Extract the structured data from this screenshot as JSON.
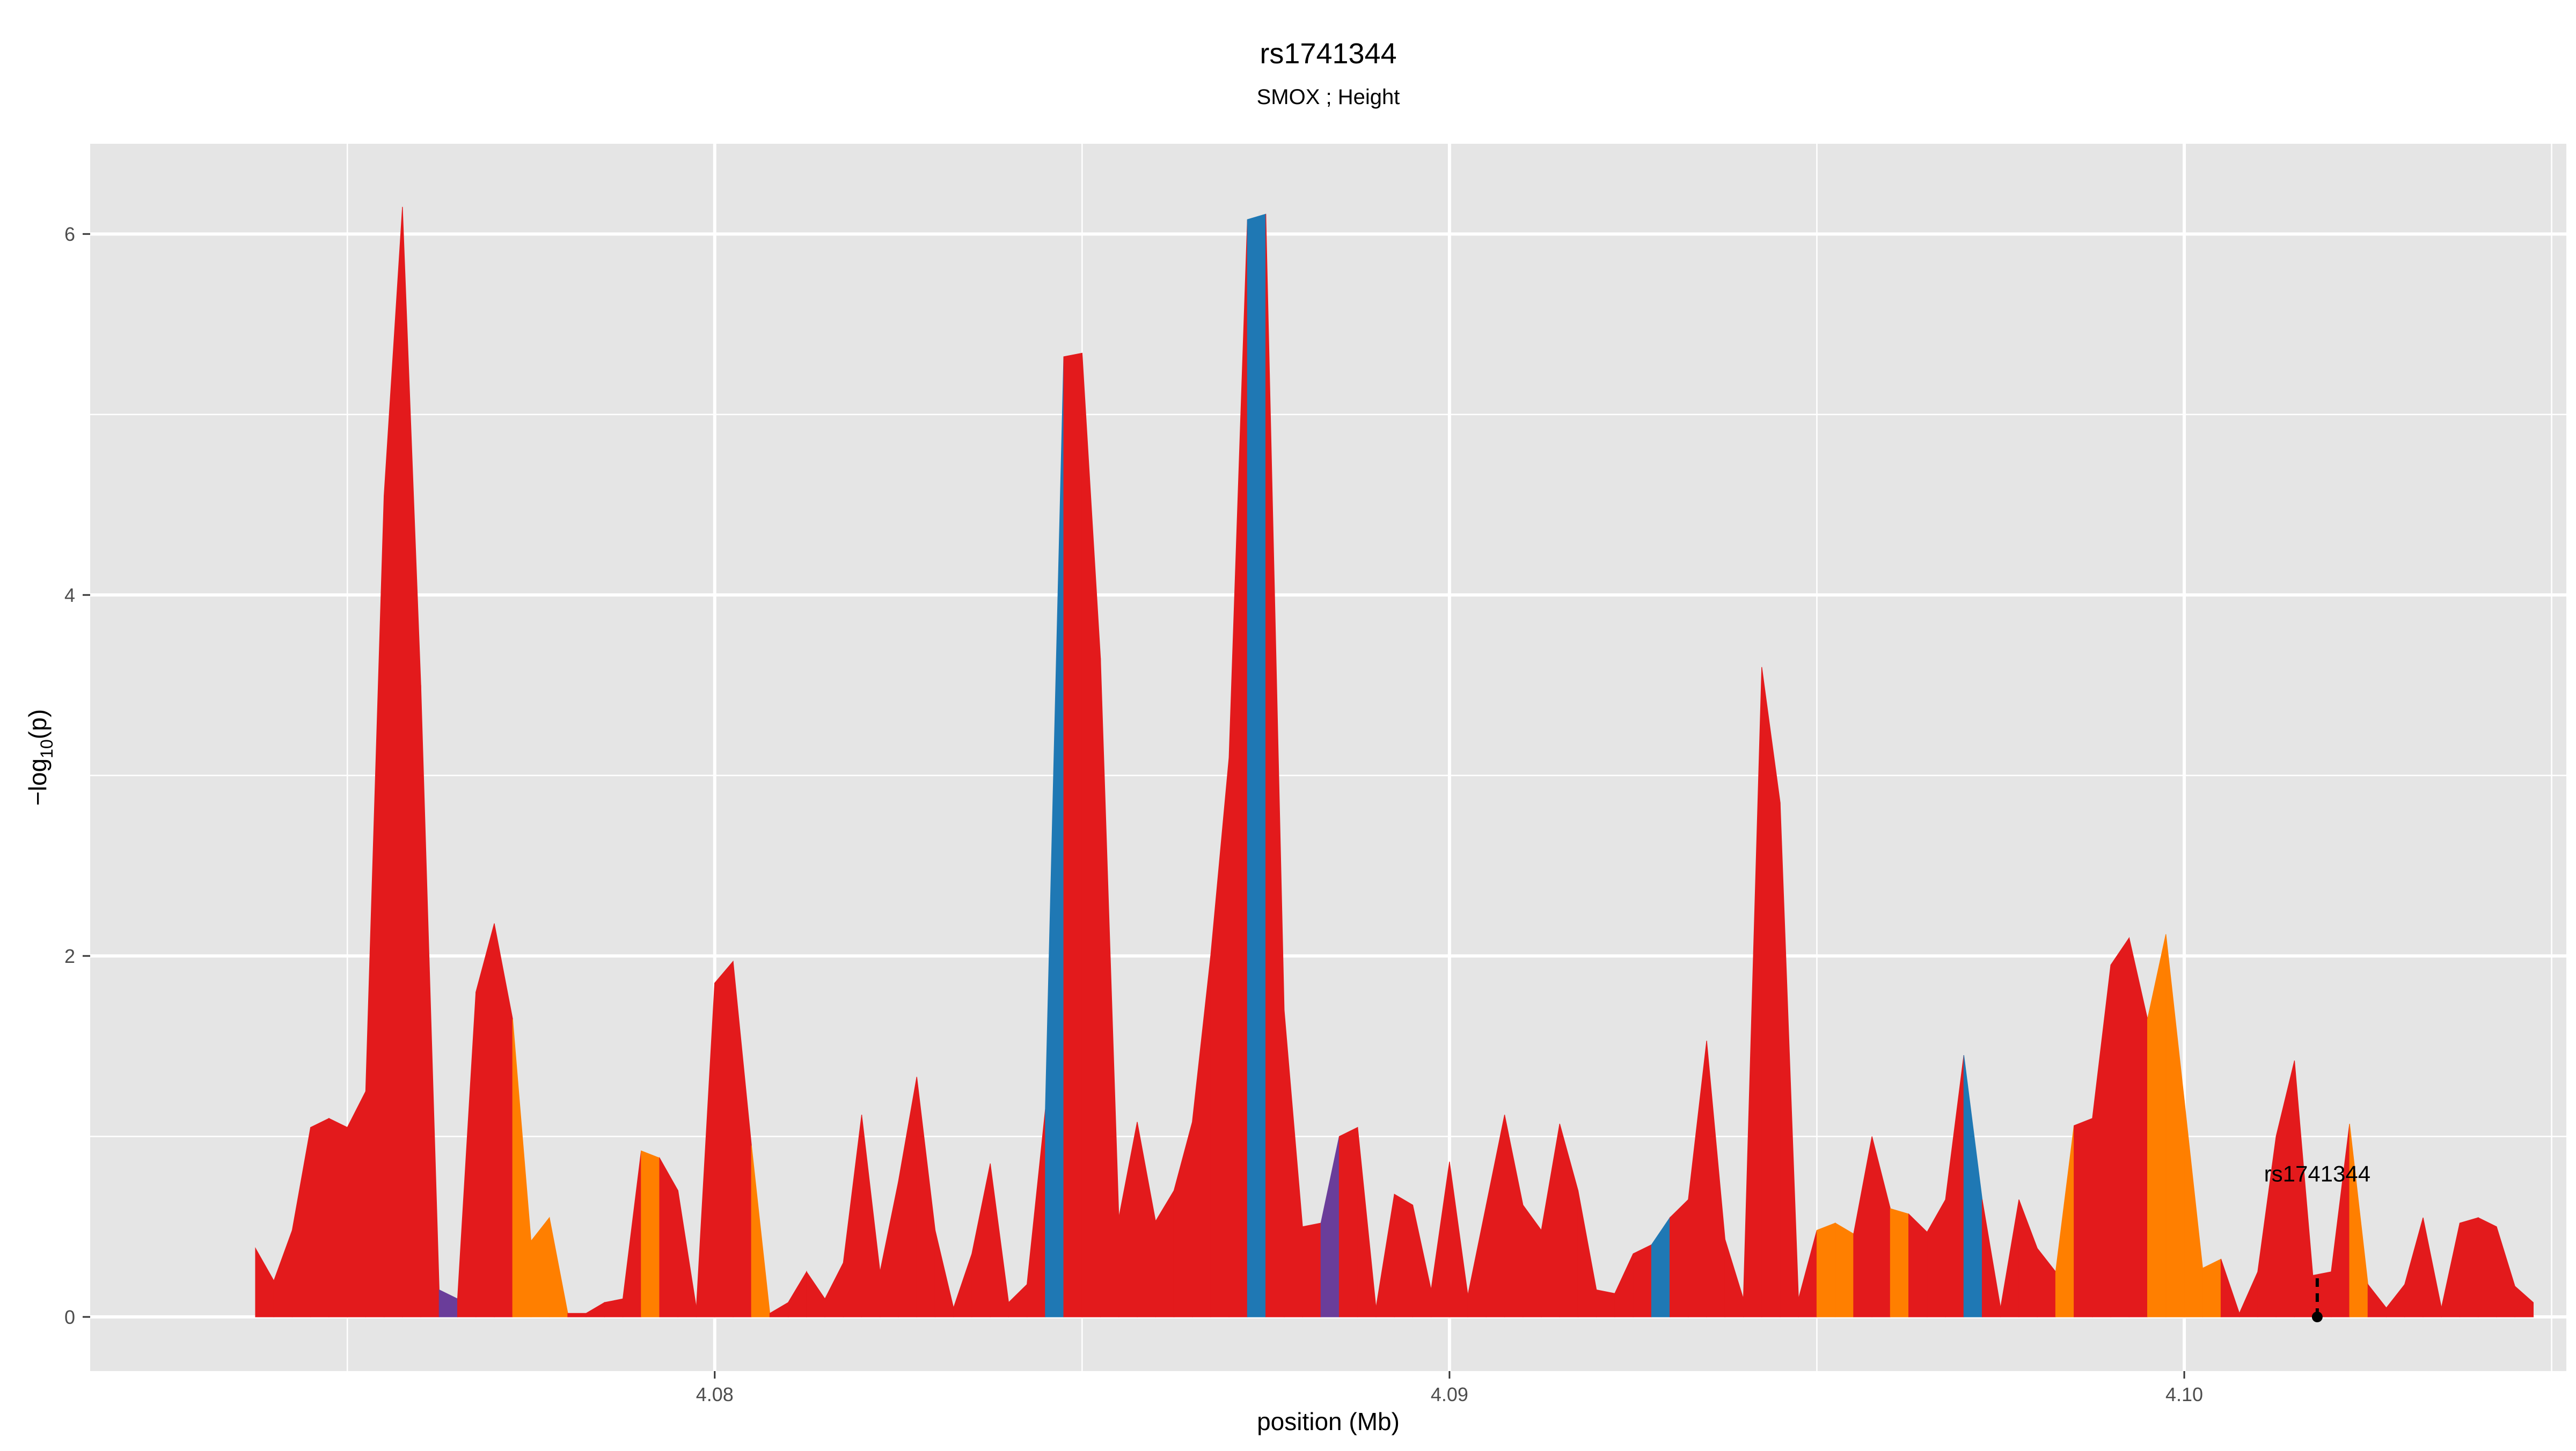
{
  "chart_data": {
    "type": "area",
    "title": "rs1741344",
    "subtitle": "SMOX ; Height",
    "xlabel": "position (Mb)",
    "ylabel_base": "−log",
    "ylabel_sub": "10",
    "ylabel_tail": "(p)",
    "xlim": [
      4.0715,
      4.1052
    ],
    "ylim": [
      -0.3,
      6.5
    ],
    "xticks": [
      {
        "value": 4.08,
        "label": "4.08"
      },
      {
        "value": 4.09,
        "label": "4.09"
      },
      {
        "value": 4.1,
        "label": "4.10"
      }
    ],
    "xminor": [
      4.075,
      4.085,
      4.095,
      4.105
    ],
    "yticks": [
      {
        "value": 0,
        "label": "0"
      },
      {
        "value": 2,
        "label": "2"
      },
      {
        "value": 4,
        "label": "4"
      },
      {
        "value": 6,
        "label": "6"
      }
    ],
    "yminor": [
      1,
      3,
      5
    ],
    "grid": true,
    "colors": {
      "panel": "#e5e5e5",
      "grid": "#ffffff",
      "red": "#e31a1c",
      "orange": "#ff7f00",
      "blue": "#1f78b4",
      "purple": "#6a3d9a",
      "title": "#000000",
      "axis_text": "#4d4d4d"
    },
    "points": [
      [
        4.07375,
        0.38,
        "red"
      ],
      [
        4.074,
        0.2,
        "red"
      ],
      [
        4.07425,
        0.48,
        "red"
      ],
      [
        4.0745,
        1.05,
        "red"
      ],
      [
        4.07475,
        1.1,
        "red"
      ],
      [
        4.075,
        1.05,
        "red"
      ],
      [
        4.07525,
        1.25,
        "red"
      ],
      [
        4.0755,
        4.55,
        "red"
      ],
      [
        4.07575,
        6.15,
        "red"
      ],
      [
        4.076,
        3.5,
        "red"
      ],
      [
        4.07625,
        0.15,
        "purple"
      ],
      [
        4.0765,
        0.1,
        "red"
      ],
      [
        4.07675,
        1.8,
        "red"
      ],
      [
        4.077,
        2.18,
        "red"
      ],
      [
        4.07725,
        1.65,
        "orange"
      ],
      [
        4.0775,
        0.42,
        "orange"
      ],
      [
        4.07775,
        0.55,
        "orange"
      ],
      [
        4.078,
        0.02,
        "red"
      ],
      [
        4.07825,
        0.02,
        "red"
      ],
      [
        4.0785,
        0.08,
        "red"
      ],
      [
        4.07875,
        0.1,
        "red"
      ],
      [
        4.079,
        0.92,
        "orange"
      ],
      [
        4.07925,
        0.88,
        "red"
      ],
      [
        4.0795,
        0.7,
        "red"
      ],
      [
        4.07975,
        0.05,
        "red"
      ],
      [
        4.08,
        1.85,
        "red"
      ],
      [
        4.08025,
        1.97,
        "red"
      ],
      [
        4.0805,
        0.95,
        "orange"
      ],
      [
        4.08075,
        0.02,
        "red"
      ],
      [
        4.081,
        0.08,
        "red"
      ],
      [
        4.08125,
        0.25,
        "red"
      ],
      [
        4.0815,
        0.1,
        "red"
      ],
      [
        4.08175,
        0.3,
        "red"
      ],
      [
        4.082,
        1.12,
        "red"
      ],
      [
        4.08225,
        0.25,
        "red"
      ],
      [
        4.0825,
        0.75,
        "red"
      ],
      [
        4.08275,
        1.33,
        "red"
      ],
      [
        4.083,
        0.48,
        "red"
      ],
      [
        4.08325,
        0.05,
        "red"
      ],
      [
        4.0835,
        0.35,
        "red"
      ],
      [
        4.08375,
        0.85,
        "red"
      ],
      [
        4.084,
        0.08,
        "red"
      ],
      [
        4.08425,
        0.18,
        "red"
      ],
      [
        4.0845,
        1.15,
        "blue"
      ],
      [
        4.08475,
        5.32,
        "red"
      ],
      [
        4.085,
        5.34,
        "red"
      ],
      [
        4.08525,
        3.65,
        "red"
      ],
      [
        4.0855,
        0.55,
        "red"
      ],
      [
        4.08575,
        1.08,
        "red"
      ],
      [
        4.086,
        0.53,
        "red"
      ],
      [
        4.08625,
        0.7,
        "red"
      ],
      [
        4.0865,
        1.08,
        "red"
      ],
      [
        4.08675,
        2.0,
        "red"
      ],
      [
        4.087,
        3.1,
        "red"
      ],
      [
        4.08725,
        6.08,
        "blue"
      ],
      [
        4.0875,
        6.11,
        "red"
      ],
      [
        4.08775,
        1.7,
        "red"
      ],
      [
        4.088,
        0.5,
        "red"
      ],
      [
        4.08825,
        0.52,
        "purple"
      ],
      [
        4.0885,
        1.0,
        "red"
      ],
      [
        4.08875,
        1.05,
        "red"
      ],
      [
        4.089,
        0.05,
        "red"
      ],
      [
        4.08925,
        0.68,
        "red"
      ],
      [
        4.0895,
        0.62,
        "red"
      ],
      [
        4.08975,
        0.15,
        "red"
      ],
      [
        4.09,
        0.86,
        "red"
      ],
      [
        4.09025,
        0.12,
        "red"
      ],
      [
        4.0905,
        0.62,
        "red"
      ],
      [
        4.09075,
        1.12,
        "red"
      ],
      [
        4.091,
        0.62,
        "red"
      ],
      [
        4.09125,
        0.48,
        "red"
      ],
      [
        4.0915,
        1.07,
        "red"
      ],
      [
        4.09175,
        0.7,
        "red"
      ],
      [
        4.092,
        0.15,
        "red"
      ],
      [
        4.09225,
        0.13,
        "red"
      ],
      [
        4.0925,
        0.35,
        "red"
      ],
      [
        4.09275,
        0.4,
        "blue"
      ],
      [
        4.093,
        0.55,
        "red"
      ],
      [
        4.09325,
        0.65,
        "red"
      ],
      [
        4.0935,
        1.53,
        "red"
      ],
      [
        4.09375,
        0.43,
        "red"
      ],
      [
        4.094,
        0.1,
        "red"
      ],
      [
        4.09425,
        3.6,
        "red"
      ],
      [
        4.0945,
        2.85,
        "red"
      ],
      [
        4.09475,
        0.1,
        "red"
      ],
      [
        4.095,
        0.48,
        "orange"
      ],
      [
        4.09525,
        0.52,
        "orange"
      ],
      [
        4.0955,
        0.46,
        "red"
      ],
      [
        4.09575,
        1.0,
        "red"
      ],
      [
        4.096,
        0.6,
        "orange"
      ],
      [
        4.09625,
        0.57,
        "red"
      ],
      [
        4.0965,
        0.47,
        "red"
      ],
      [
        4.09675,
        0.65,
        "red"
      ],
      [
        4.097,
        1.45,
        "blue"
      ],
      [
        4.09725,
        0.65,
        "red"
      ],
      [
        4.0975,
        0.05,
        "red"
      ],
      [
        4.09775,
        0.65,
        "red"
      ],
      [
        4.098,
        0.38,
        "red"
      ],
      [
        4.09825,
        0.25,
        "orange"
      ],
      [
        4.0985,
        1.06,
        "red"
      ],
      [
        4.09875,
        1.1,
        "red"
      ],
      [
        4.099,
        1.95,
        "red"
      ],
      [
        4.09925,
        2.1,
        "red"
      ],
      [
        4.0995,
        1.65,
        "orange"
      ],
      [
        4.09975,
        2.12,
        "orange"
      ],
      [
        4.1,
        1.2,
        "orange"
      ],
      [
        4.10025,
        0.27,
        "orange"
      ],
      [
        4.1005,
        0.32,
        "red"
      ],
      [
        4.10075,
        0.02,
        "red"
      ],
      [
        4.101,
        0.25,
        "red"
      ],
      [
        4.10125,
        1.0,
        "red"
      ],
      [
        4.1015,
        1.42,
        "red"
      ],
      [
        4.10175,
        0.23,
        "red"
      ],
      [
        4.102,
        0.25,
        "red"
      ],
      [
        4.10225,
        1.07,
        "orange"
      ],
      [
        4.1025,
        0.18,
        "red"
      ],
      [
        4.10275,
        0.05,
        "red"
      ],
      [
        4.103,
        0.18,
        "red"
      ],
      [
        4.10325,
        0.55,
        "red"
      ],
      [
        4.1035,
        0.05,
        "red"
      ],
      [
        4.10375,
        0.52,
        "red"
      ],
      [
        4.104,
        0.55,
        "red"
      ],
      [
        4.10425,
        0.5,
        "red"
      ],
      [
        4.1045,
        0.17,
        "red"
      ],
      [
        4.10475,
        0.08,
        "red"
      ]
    ],
    "annotation": {
      "label": "rs1741344",
      "x": 4.10181,
      "y": 0.0,
      "label_y": 0.75
    }
  }
}
